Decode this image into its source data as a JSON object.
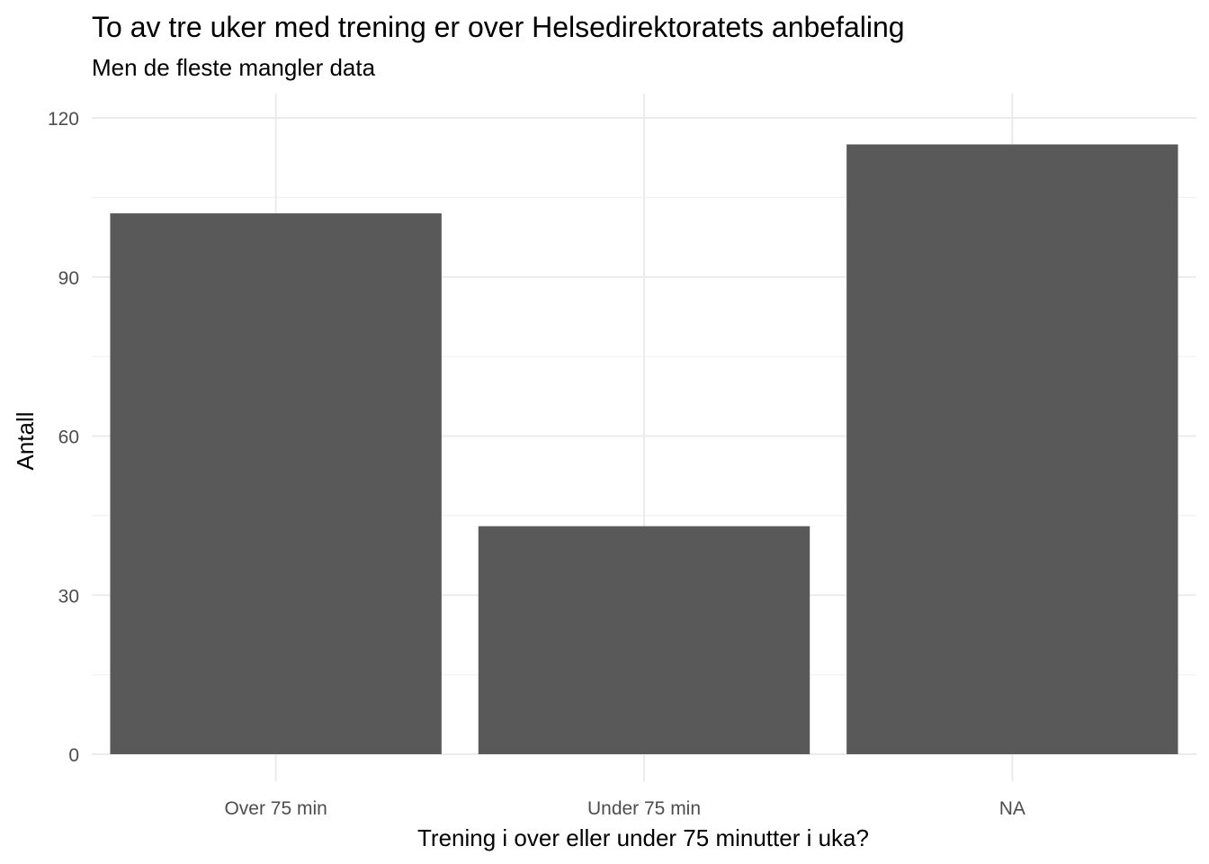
{
  "chart_data": {
    "type": "bar",
    "title": "To av tre uker med trening er over Helsedirektoratets anbefaling",
    "subtitle": "Men de fleste mangler data",
    "xlabel": "Trening i over eller under 75 minutter i uka?",
    "ylabel": "Antall",
    "categories": [
      "Over 75 min",
      "Under 75 min",
      "NA"
    ],
    "values": [
      102,
      43,
      115
    ],
    "ylim": [
      0,
      120
    ],
    "yticks": [
      0,
      30,
      60,
      90,
      120
    ],
    "ytick_labels": [
      "0",
      "30",
      "60",
      "90",
      "120"
    ],
    "grid": true,
    "legend": "none",
    "colors": {
      "bar": "#595959",
      "grid_major": "#ebebeb",
      "grid_minor": "#f2f2f2",
      "tick_text": "#4d4d4d"
    }
  }
}
